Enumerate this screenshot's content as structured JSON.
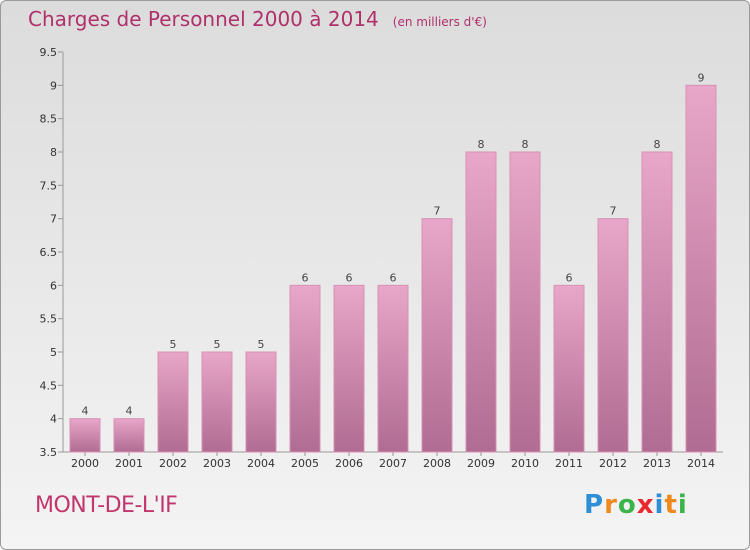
{
  "header": {
    "title": "Charges de Personnel 2000 à 2014",
    "subtitle": "(en milliers d'€)"
  },
  "footer": {
    "commune": "MONT-DE-L'IF",
    "logo_letters": [
      {
        "ch": "P",
        "color": "#2e8fd6"
      },
      {
        "ch": "r",
        "color": "#f08a1c"
      },
      {
        "ch": "o",
        "color": "#3bb54a"
      },
      {
        "ch": "x",
        "color": "#e8272e"
      },
      {
        "ch": "i",
        "color": "#2e8fd6"
      },
      {
        "ch": "t",
        "color": "#f08a1c"
      },
      {
        "ch": "i",
        "color": "#3bb54a"
      }
    ]
  },
  "chart_data": {
    "type": "bar",
    "title": "Charges de Personnel 2000 à 2014",
    "subtitle": "(en milliers d'€)",
    "categories": [
      "2000",
      "2001",
      "2002",
      "2003",
      "2004",
      "2005",
      "2006",
      "2007",
      "2008",
      "2009",
      "2010",
      "2011",
      "2012",
      "2013",
      "2014"
    ],
    "values": [
      4,
      4,
      5,
      5,
      5,
      6,
      6,
      6,
      7,
      8,
      8,
      6,
      7,
      8,
      9
    ],
    "data_labels": [
      "4",
      "4",
      "5",
      "5",
      "5",
      "6",
      "6",
      "6",
      "7",
      "8",
      "8",
      "6",
      "7",
      "8",
      "9"
    ],
    "ylim": [
      3.5,
      9.5
    ],
    "yticks": [
      "3.5",
      "4",
      "4.5",
      "5",
      "5.5",
      "6",
      "6.5",
      "7",
      "7.5",
      "8",
      "8.5",
      "9",
      "9.5"
    ],
    "grid": false,
    "colors": {
      "bar_top": "#e8a6c8",
      "bar_bottom": "#b06c92",
      "bar_edge": "#d890b6",
      "axis": "#999999",
      "title": "#b0306a"
    }
  }
}
